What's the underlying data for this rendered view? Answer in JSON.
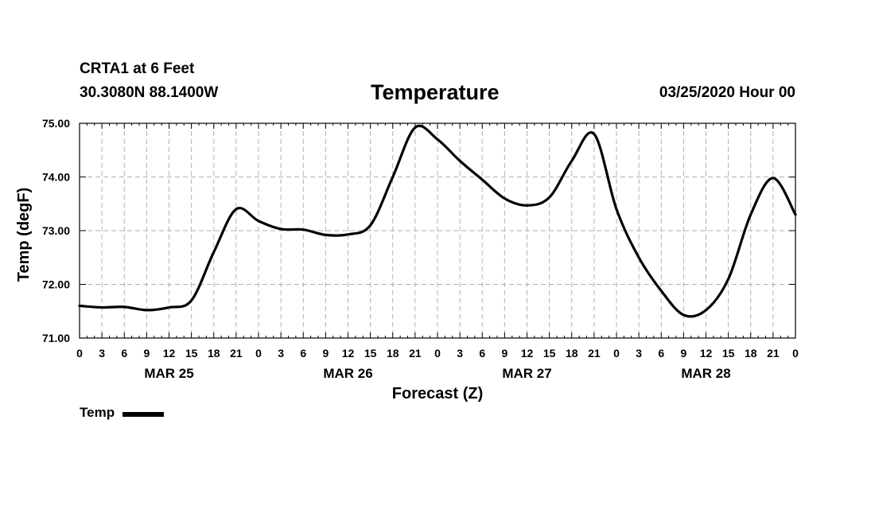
{
  "header": {
    "station": "CRTA1 at 6 Feet",
    "location": "30.3080N 88.1400W",
    "title": "Temperature",
    "run_time": "03/25/2020 Hour 00"
  },
  "chart_data": {
    "type": "line",
    "title": "Temperature",
    "xlabel": "Forecast (Z)",
    "ylabel": "Temp (degF)",
    "ylim": [
      71.0,
      75.0
    ],
    "yticks": [
      "71.00",
      "72.00",
      "73.00",
      "74.00",
      "75.00"
    ],
    "x_range_hours": [
      0,
      96
    ],
    "x_tick_labels": [
      "0",
      "3",
      "6",
      "9",
      "12",
      "15",
      "18",
      "21",
      "0",
      "3",
      "6",
      "9",
      "12",
      "15",
      "18",
      "21",
      "0",
      "3",
      "6",
      "9",
      "12",
      "15",
      "18",
      "21",
      "0",
      "3",
      "6",
      "9",
      "12",
      "15",
      "18",
      "21",
      "0"
    ],
    "date_labels": [
      "MAR 25",
      "MAR 26",
      "MAR 27",
      "MAR 28"
    ],
    "grid": true,
    "legend_position": "bottom-left",
    "series": [
      {
        "name": "Temp",
        "color": "#000000",
        "x_hours": [
          0,
          3,
          6,
          9,
          12,
          15,
          18,
          21,
          24,
          27,
          30,
          33,
          36,
          39,
          42,
          45,
          48,
          51,
          54,
          57,
          60,
          63,
          66,
          69,
          72,
          75,
          78,
          81,
          84,
          87,
          90,
          93,
          96
        ],
        "values": [
          71.6,
          71.57,
          71.58,
          71.52,
          71.57,
          71.7,
          72.6,
          73.4,
          73.18,
          73.03,
          73.02,
          72.92,
          72.93,
          73.1,
          74.0,
          74.92,
          74.7,
          74.3,
          73.95,
          73.6,
          73.47,
          73.62,
          74.3,
          74.8,
          73.4,
          72.5,
          71.88,
          71.43,
          71.52,
          72.1,
          73.3,
          73.98,
          73.3
        ]
      }
    ]
  }
}
